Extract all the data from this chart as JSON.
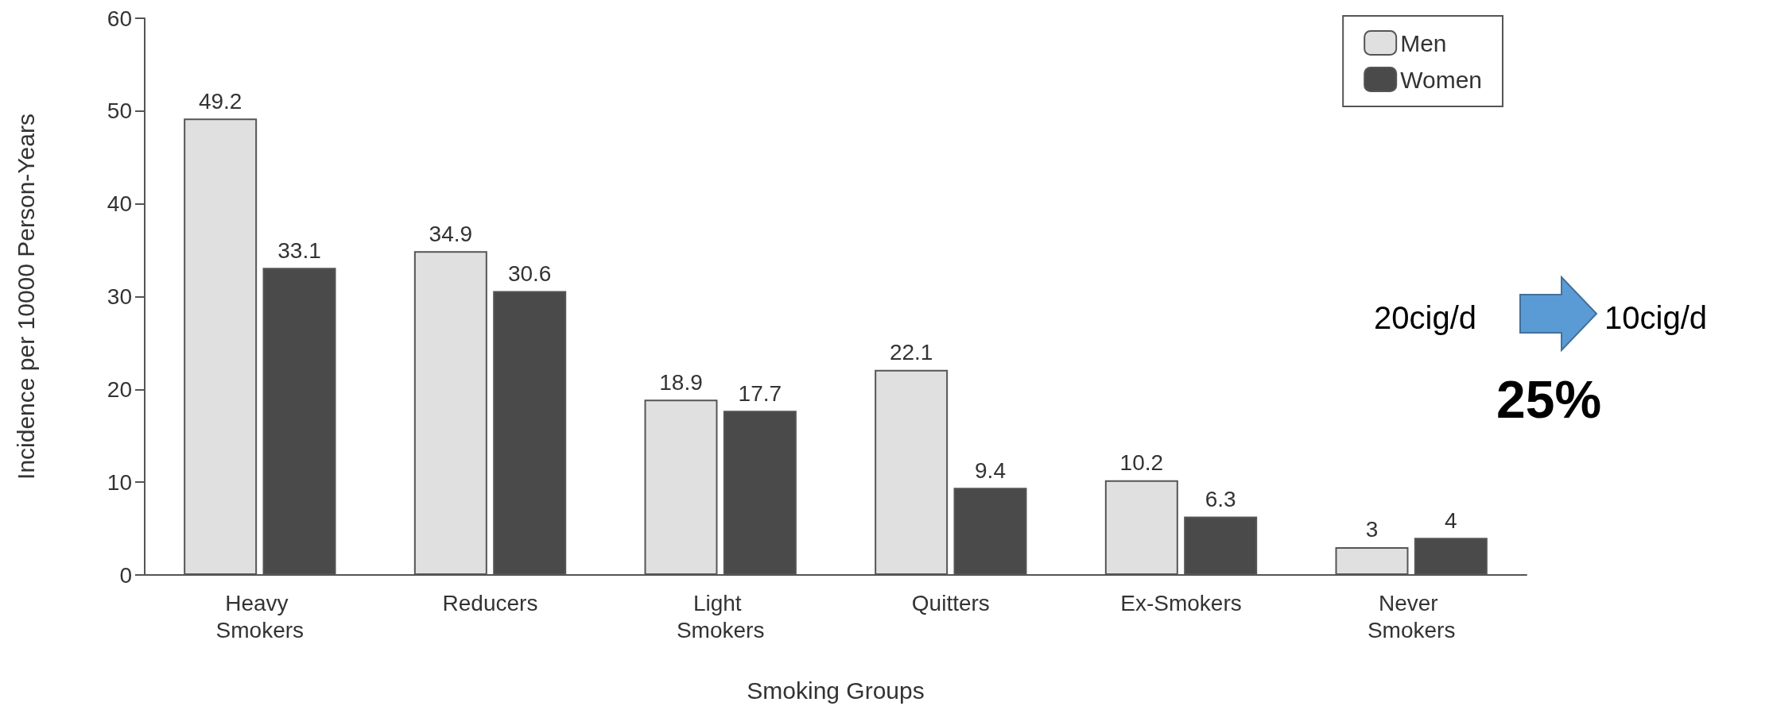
{
  "chart_data": {
    "type": "bar",
    "xlabel": "Smoking Groups",
    "ylabel": "Incidence per 10000 Person-Years",
    "categories": [
      "Heavy Smokers",
      "Reducers",
      "Light Smokers",
      "Quitters",
      "Ex-Smokers",
      "Never Smokers"
    ],
    "series": [
      {
        "name": "Men",
        "color": "#e0e0e0",
        "values": [
          49.2,
          34.9,
          18.9,
          22.1,
          10.2,
          3
        ]
      },
      {
        "name": "Women",
        "color": "#4a4a4a",
        "values": [
          33.1,
          30.6,
          17.7,
          9.4,
          6.3,
          4
        ]
      }
    ],
    "ylim": [
      0,
      60
    ],
    "yticks": [
      0,
      10,
      20,
      30,
      40,
      50,
      60
    ],
    "grid": false,
    "legend": "top right",
    "data_labels": true,
    "annotations": [
      "20cig/d",
      "10cig/d",
      "25%"
    ]
  }
}
